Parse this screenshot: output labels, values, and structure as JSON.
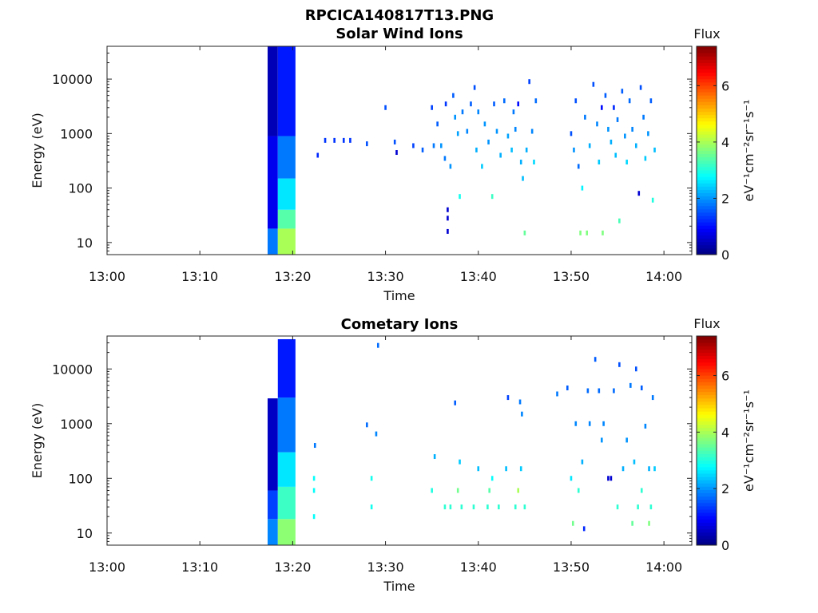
{
  "figure": {
    "title": "RPCICA140817T13.PNG"
  },
  "chart_data": [
    {
      "type": "heatmap",
      "title": "Solar Wind Ions",
      "xlabel": "Time",
      "ylabel": "Energy (eV)",
      "x_ticks": [
        "13:00",
        "13:10",
        "13:20",
        "13:30",
        "13:40",
        "13:50",
        "14:00"
      ],
      "x_range_minutes": [
        0,
        63
      ],
      "y_scale": "log",
      "y_ticks": [
        "10",
        "100",
        "1000",
        "10000"
      ],
      "y_range": [
        6,
        40000
      ],
      "colorbar": {
        "label": "Flux",
        "unit": "eV⁻¹cm⁻²sr⁻¹s⁻¹",
        "ticks": [
          "0",
          "2",
          "4",
          "6"
        ],
        "range": [
          0,
          7.4
        ],
        "colormap": "jet"
      },
      "columns": [
        {
          "t0": 17.3,
          "t1": 18.4,
          "segments": [
            [
              6,
              18,
              1.8
            ],
            [
              18,
              900,
              0.8
            ],
            [
              900,
              40000,
              0.4
            ]
          ]
        },
        {
          "t0": 18.4,
          "t1": 20.3,
          "segments": [
            [
              6,
              18,
              4.0
            ],
            [
              18,
              40,
              3.4
            ],
            [
              40,
              150,
              2.6
            ],
            [
              150,
              900,
              1.8
            ],
            [
              900,
              40000,
              1.1
            ]
          ]
        }
      ],
      "points": [
        [
          22.7,
          400,
          1.2
        ],
        [
          23.5,
          750,
          1.3
        ],
        [
          24.5,
          750,
          1.3
        ],
        [
          25.5,
          750,
          1.3
        ],
        [
          26.2,
          750,
          1.3
        ],
        [
          28,
          650,
          1.5
        ],
        [
          30,
          3000,
          1.5
        ],
        [
          31,
          700,
          1.5
        ],
        [
          31.2,
          450,
          0.6
        ],
        [
          33,
          600,
          1.4
        ],
        [
          34,
          500,
          1.6
        ],
        [
          35,
          3000,
          1.4
        ],
        [
          35.2,
          600,
          1.8
        ],
        [
          35.6,
          1500,
          1.6
        ],
        [
          36,
          600,
          2.0
        ],
        [
          36.4,
          350,
          1.8
        ],
        [
          36.5,
          3500,
          1.3
        ],
        [
          36.7,
          16,
          0.6
        ],
        [
          36.7,
          28,
          0.6
        ],
        [
          36.7,
          40,
          0.6
        ],
        [
          37,
          250,
          2.0
        ],
        [
          37.3,
          5000,
          1.6
        ],
        [
          37.5,
          2000,
          2.0
        ],
        [
          37.8,
          1000,
          2.1
        ],
        [
          38,
          70,
          2.9
        ],
        [
          38.3,
          2500,
          1.8
        ],
        [
          38.8,
          1100,
          1.9
        ],
        [
          39.2,
          3500,
          1.6
        ],
        [
          39.6,
          7000,
          1.5
        ],
        [
          39.8,
          500,
          2.2
        ],
        [
          40,
          2500,
          1.9
        ],
        [
          40.4,
          250,
          2.4
        ],
        [
          40.7,
          1500,
          2.0
        ],
        [
          41.1,
          700,
          2.0
        ],
        [
          41.5,
          70,
          3.2
        ],
        [
          41.7,
          3500,
          1.6
        ],
        [
          42,
          1100,
          2.0
        ],
        [
          42.4,
          400,
          2.2
        ],
        [
          42.8,
          4000,
          1.7
        ],
        [
          43.2,
          900,
          2.1
        ],
        [
          43.6,
          500,
          2.3
        ],
        [
          43.8,
          2500,
          1.8
        ],
        [
          44,
          1200,
          1.9
        ],
        [
          44.3,
          3500,
          1.0
        ],
        [
          44.6,
          300,
          2.2
        ],
        [
          44.8,
          150,
          2.3
        ],
        [
          45,
          15,
          3.5
        ],
        [
          45.2,
          500,
          2.2
        ],
        [
          45.5,
          9000,
          1.4
        ],
        [
          45.8,
          1100,
          1.9
        ],
        [
          46,
          300,
          2.5
        ],
        [
          46.2,
          4000,
          1.7
        ],
        [
          50,
          1000,
          1.5
        ],
        [
          50.3,
          500,
          2.0
        ],
        [
          50.5,
          4000,
          1.5
        ],
        [
          50.8,
          250,
          1.7
        ],
        [
          51,
          15,
          3.7
        ],
        [
          51.2,
          100,
          2.7
        ],
        [
          51.5,
          2000,
          1.8
        ],
        [
          51.7,
          15,
          3.7
        ],
        [
          52,
          600,
          2.2
        ],
        [
          52.4,
          8000,
          1.5
        ],
        [
          52.8,
          1500,
          1.9
        ],
        [
          53,
          300,
          2.4
        ],
        [
          53.3,
          3000,
          1.0
        ],
        [
          53.4,
          15,
          3.7
        ],
        [
          53.7,
          5000,
          1.6
        ],
        [
          54,
          1200,
          2.0
        ],
        [
          54.3,
          700,
          2.2
        ],
        [
          54.6,
          3000,
          1.2
        ],
        [
          54.8,
          400,
          2.3
        ],
        [
          55,
          1800,
          1.8
        ],
        [
          55.2,
          25,
          3.3
        ],
        [
          55.5,
          6000,
          1.6
        ],
        [
          55.8,
          900,
          2.0
        ],
        [
          56,
          300,
          2.5
        ],
        [
          56.3,
          4000,
          1.7
        ],
        [
          56.6,
          1200,
          1.9
        ],
        [
          57,
          600,
          2.2
        ],
        [
          57.3,
          80,
          0.6
        ],
        [
          57.5,
          7000,
          1.5
        ],
        [
          57.8,
          2000,
          1.8
        ],
        [
          58,
          350,
          2.4
        ],
        [
          58.3,
          1000,
          2.0
        ],
        [
          58.6,
          4000,
          1.6
        ],
        [
          58.8,
          60,
          3.0
        ],
        [
          59,
          500,
          2.3
        ]
      ]
    },
    {
      "type": "heatmap",
      "title": "Cometary Ions",
      "xlabel": "Time",
      "ylabel": "Energy (eV)",
      "x_ticks": [
        "13:00",
        "13:10",
        "13:20",
        "13:30",
        "13:40",
        "13:50",
        "14:00"
      ],
      "x_range_minutes": [
        0,
        63
      ],
      "y_scale": "log",
      "y_ticks": [
        "10",
        "100",
        "1000",
        "10000"
      ],
      "y_range": [
        6,
        40000
      ],
      "colorbar": {
        "label": "Flux",
        "unit": "eV⁻¹cm⁻²sr⁻¹s⁻¹",
        "ticks": [
          "0",
          "2",
          "4",
          "6"
        ],
        "range": [
          0,
          7.4
        ],
        "colormap": "jet"
      },
      "columns": [
        {
          "t0": 17.3,
          "t1": 18.4,
          "segments": [
            [
              6,
              18,
              1.9
            ],
            [
              18,
              60,
              1.4
            ],
            [
              60,
              2900,
              0.5
            ]
          ]
        },
        {
          "t0": 18.4,
          "t1": 20.3,
          "segments": [
            [
              6,
              18,
              3.8
            ],
            [
              18,
              70,
              3.2
            ],
            [
              70,
              300,
              2.6
            ],
            [
              300,
              3000,
              1.8
            ],
            [
              3000,
              35000,
              1.1
            ]
          ]
        }
      ],
      "points": [
        [
          22.4,
          400,
          1.8
        ],
        [
          22.3,
          100,
          2.8
        ],
        [
          22.3,
          60,
          2.8
        ],
        [
          22.3,
          20,
          2.8
        ],
        [
          28,
          950,
          1.7
        ],
        [
          28.5,
          100,
          2.9
        ],
        [
          28.5,
          30,
          2.9
        ],
        [
          29,
          650,
          1.9
        ],
        [
          29.2,
          27000,
          1.7
        ],
        [
          35,
          60,
          3.0
        ],
        [
          35.3,
          250,
          2.2
        ],
        [
          36.4,
          30,
          3.1
        ],
        [
          37,
          30,
          3.1
        ],
        [
          37.5,
          2400,
          1.6
        ],
        [
          37.8,
          60,
          3.6
        ],
        [
          38,
          200,
          2.4
        ],
        [
          38.2,
          30,
          3.1
        ],
        [
          39.5,
          30,
          3.1
        ],
        [
          40,
          150,
          2.3
        ],
        [
          41,
          30,
          3.1
        ],
        [
          41.2,
          60,
          3.4
        ],
        [
          41.5,
          100,
          2.8
        ],
        [
          42.2,
          30,
          3.1
        ],
        [
          43,
          150,
          2.3
        ],
        [
          43.2,
          3000,
          1.4
        ],
        [
          44,
          30,
          3.1
        ],
        [
          44.3,
          60,
          4.0
        ],
        [
          44.5,
          2500,
          1.8
        ],
        [
          44.6,
          150,
          2.4
        ],
        [
          44.7,
          1500,
          1.9
        ],
        [
          45,
          30,
          3.1
        ],
        [
          48.5,
          3500,
          1.8
        ],
        [
          49.6,
          4500,
          1.6
        ],
        [
          50,
          100,
          2.6
        ],
        [
          50.2,
          15,
          3.6
        ],
        [
          50.5,
          1000,
          1.9
        ],
        [
          50.8,
          60,
          3.1
        ],
        [
          51.2,
          200,
          2.2
        ],
        [
          51.4,
          12,
          1.2
        ],
        [
          51.8,
          4000,
          1.7
        ],
        [
          52,
          1000,
          1.9
        ],
        [
          52.6,
          15000,
          1.6
        ],
        [
          53,
          4000,
          1.7
        ],
        [
          53.3,
          500,
          2.0
        ],
        [
          53.5,
          1000,
          1.9
        ],
        [
          54,
          100,
          0.6
        ],
        [
          54.3,
          100,
          0.6
        ],
        [
          54.6,
          4000,
          1.7
        ],
        [
          55,
          30,
          3.1
        ],
        [
          55.2,
          12000,
          1.5
        ],
        [
          55.6,
          150,
          2.2
        ],
        [
          56,
          500,
          2.0
        ],
        [
          56.4,
          5000,
          1.8
        ],
        [
          56.8,
          200,
          2.3
        ],
        [
          57.2,
          30,
          3.1
        ],
        [
          57.6,
          60,
          3.1
        ],
        [
          58,
          900,
          1.9
        ],
        [
          58.4,
          150,
          2.2
        ],
        [
          58.8,
          3000,
          1.8
        ],
        [
          59,
          150,
          2.4
        ],
        [
          57,
          10000,
          1.5
        ],
        [
          56.6,
          15,
          3.5
        ],
        [
          58.4,
          15,
          3.7
        ],
        [
          58.6,
          30,
          3.1
        ],
        [
          57.6,
          4500,
          1.6
        ]
      ]
    }
  ]
}
